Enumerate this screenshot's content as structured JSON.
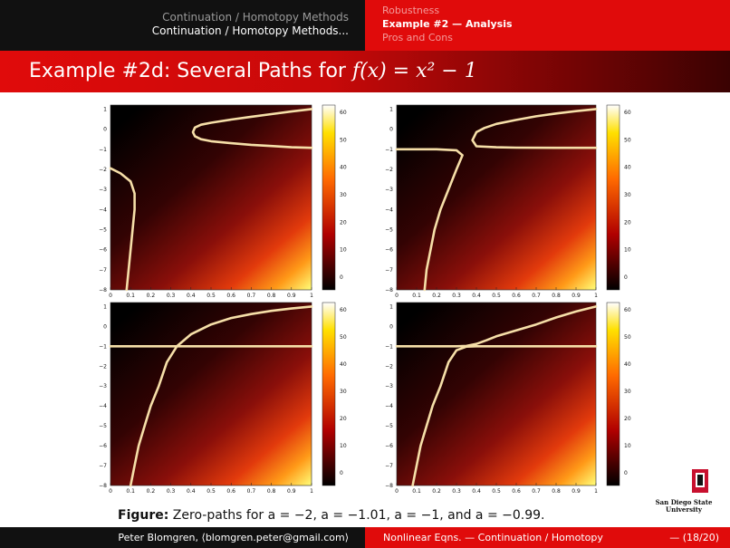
{
  "header": {
    "left_line1": "Continuation / Homotopy Methods",
    "left_line2": "Continuation / Homotopy Methods...",
    "right_item1": "Robustness",
    "right_item2": "Example #2 — Analysis",
    "right_item3": "Pros and Cons"
  },
  "slide_title": {
    "prefix": "Example #2d: Several Paths for ",
    "math": "f(x) = x² − 1"
  },
  "caption": {
    "label": "Figure:",
    "text": " Zero-paths for a = −2, a = −1.01, a = −1, and a = −0.99."
  },
  "footer": {
    "author": "Peter Blomgren, ⟨blomgren.peter@gmail.com⟩",
    "course": "Nonlinear Eqns. — Continuation / Homotopy",
    "page": "— (18/20)"
  },
  "logo": {
    "line1": "San Diego State",
    "line2": "University"
  },
  "chart_data": [
    {
      "type": "heatmap",
      "panel": "a = -2",
      "x_ticks": [
        "0",
        "0.1",
        "0.2",
        "0.3",
        "0.4",
        "0.5",
        "0.6",
        "0.7",
        "0.8",
        "0.9",
        "1"
      ],
      "y_ticks": [
        "1",
        "0",
        "−1",
        "−2",
        "−3",
        "−4",
        "−5",
        "−6",
        "−7",
        "−8"
      ],
      "colorbar_ticks": [
        "60",
        "50",
        "40",
        "30",
        "20",
        "10",
        "0"
      ],
      "xlim": [
        0,
        1
      ],
      "ylim": [
        -8,
        1.2
      ],
      "colormap": "hot",
      "zero_paths": [
        [
          [
            1.0,
            1.0
          ],
          [
            0.9,
            0.88
          ],
          [
            0.8,
            0.75
          ],
          [
            0.7,
            0.62
          ],
          [
            0.6,
            0.48
          ],
          [
            0.5,
            0.32
          ],
          [
            0.45,
            0.22
          ],
          [
            0.42,
            0.08
          ],
          [
            0.41,
            -0.15
          ],
          [
            0.42,
            -0.35
          ],
          [
            0.45,
            -0.5
          ],
          [
            0.5,
            -0.6
          ],
          [
            0.6,
            -0.7
          ],
          [
            0.7,
            -0.78
          ],
          [
            0.8,
            -0.84
          ],
          [
            0.9,
            -0.9
          ],
          [
            1.0,
            -0.93
          ]
        ],
        [
          [
            0.0,
            -1.95
          ],
          [
            0.05,
            -2.2
          ],
          [
            0.1,
            -2.6
          ],
          [
            0.12,
            -3.2
          ],
          [
            0.12,
            -4.0
          ],
          [
            0.11,
            -5.0
          ],
          [
            0.1,
            -6.0
          ],
          [
            0.09,
            -7.0
          ],
          [
            0.08,
            -8.0
          ]
        ]
      ]
    },
    {
      "type": "heatmap",
      "panel": "a = -1.01",
      "x_ticks": [
        "0",
        "0.1",
        "0.2",
        "0.3",
        "0.4",
        "0.5",
        "0.6",
        "0.7",
        "0.8",
        "0.9",
        "1"
      ],
      "y_ticks": [
        "1",
        "0",
        "−1",
        "−2",
        "−3",
        "−4",
        "−5",
        "−6",
        "−7",
        "−8"
      ],
      "colorbar_ticks": [
        "60",
        "50",
        "40",
        "30",
        "20",
        "10",
        "0"
      ],
      "xlim": [
        0,
        1
      ],
      "ylim": [
        -8,
        1.2
      ],
      "colormap": "hot",
      "zero_paths": [
        [
          [
            1.0,
            1.0
          ],
          [
            0.9,
            0.9
          ],
          [
            0.8,
            0.78
          ],
          [
            0.7,
            0.64
          ],
          [
            0.6,
            0.46
          ],
          [
            0.5,
            0.26
          ],
          [
            0.44,
            0.06
          ],
          [
            0.4,
            -0.15
          ],
          [
            0.38,
            -0.55
          ],
          [
            0.4,
            -0.85
          ],
          [
            0.5,
            -0.9
          ],
          [
            0.6,
            -0.92
          ],
          [
            0.8,
            -0.93
          ],
          [
            1.0,
            -0.93
          ]
        ],
        [
          [
            0.0,
            -1.0
          ],
          [
            0.1,
            -1.0
          ],
          [
            0.2,
            -1.0
          ],
          [
            0.3,
            -1.05
          ],
          [
            0.33,
            -1.3
          ],
          [
            0.3,
            -2.0
          ],
          [
            0.26,
            -3.0
          ],
          [
            0.22,
            -4.0
          ],
          [
            0.19,
            -5.0
          ],
          [
            0.17,
            -6.0
          ],
          [
            0.15,
            -7.0
          ],
          [
            0.14,
            -8.0
          ]
        ]
      ]
    },
    {
      "type": "heatmap",
      "panel": "a = -1",
      "x_ticks": [
        "0",
        "0.1",
        "0.2",
        "0.3",
        "0.4",
        "0.5",
        "0.6",
        "0.7",
        "0.8",
        "0.9",
        "1"
      ],
      "y_ticks": [
        "1",
        "0",
        "−1",
        "−2",
        "−3",
        "−4",
        "−5",
        "−6",
        "−7",
        "−8"
      ],
      "colorbar_ticks": [
        "60",
        "50",
        "40",
        "30",
        "20",
        "10",
        "0"
      ],
      "xlim": [
        0,
        1
      ],
      "ylim": [
        -8,
        1.2
      ],
      "colormap": "hot",
      "zero_paths": [
        [
          [
            0.0,
            -1.0
          ],
          [
            1.0,
            -1.0
          ]
        ],
        [
          [
            1.0,
            1.0
          ],
          [
            0.9,
            0.9
          ],
          [
            0.8,
            0.78
          ],
          [
            0.7,
            0.62
          ],
          [
            0.6,
            0.42
          ],
          [
            0.5,
            0.1
          ],
          [
            0.4,
            -0.4
          ],
          [
            0.33,
            -1.0
          ],
          [
            0.28,
            -1.8
          ],
          [
            0.24,
            -3.0
          ],
          [
            0.2,
            -4.0
          ],
          [
            0.17,
            -5.0
          ],
          [
            0.14,
            -6.0
          ],
          [
            0.12,
            -7.0
          ],
          [
            0.1,
            -8.0
          ]
        ]
      ]
    },
    {
      "type": "heatmap",
      "panel": "a = -0.99",
      "x_ticks": [
        "0",
        "0.1",
        "0.2",
        "0.3",
        "0.4",
        "0.5",
        "0.6",
        "0.7",
        "0.8",
        "0.9",
        "1"
      ],
      "y_ticks": [
        "1",
        "0",
        "−1",
        "−2",
        "−3",
        "−4",
        "−5",
        "−6",
        "−7",
        "−8"
      ],
      "colorbar_ticks": [
        "60",
        "50",
        "40",
        "30",
        "20",
        "10",
        "0"
      ],
      "xlim": [
        0,
        1
      ],
      "ylim": [
        -8,
        1.2
      ],
      "colormap": "hot",
      "zero_paths": [
        [
          [
            0.0,
            -1.0
          ],
          [
            0.2,
            -1.0
          ],
          [
            0.3,
            -1.0
          ],
          [
            0.35,
            -0.98
          ],
          [
            0.4,
            -0.88
          ],
          [
            0.45,
            -0.7
          ],
          [
            0.5,
            -0.5
          ],
          [
            0.6,
            -0.2
          ],
          [
            0.7,
            0.1
          ],
          [
            0.8,
            0.45
          ],
          [
            0.9,
            0.75
          ],
          [
            1.0,
            1.0
          ]
        ],
        [
          [
            1.0,
            -1.0
          ],
          [
            0.6,
            -1.0
          ],
          [
            0.4,
            -1.0
          ],
          [
            0.35,
            -1.02
          ],
          [
            0.3,
            -1.2
          ],
          [
            0.26,
            -1.8
          ],
          [
            0.22,
            -3.0
          ],
          [
            0.18,
            -4.0
          ],
          [
            0.15,
            -5.0
          ],
          [
            0.12,
            -6.0
          ],
          [
            0.1,
            -7.0
          ],
          [
            0.08,
            -8.0
          ]
        ]
      ]
    }
  ]
}
